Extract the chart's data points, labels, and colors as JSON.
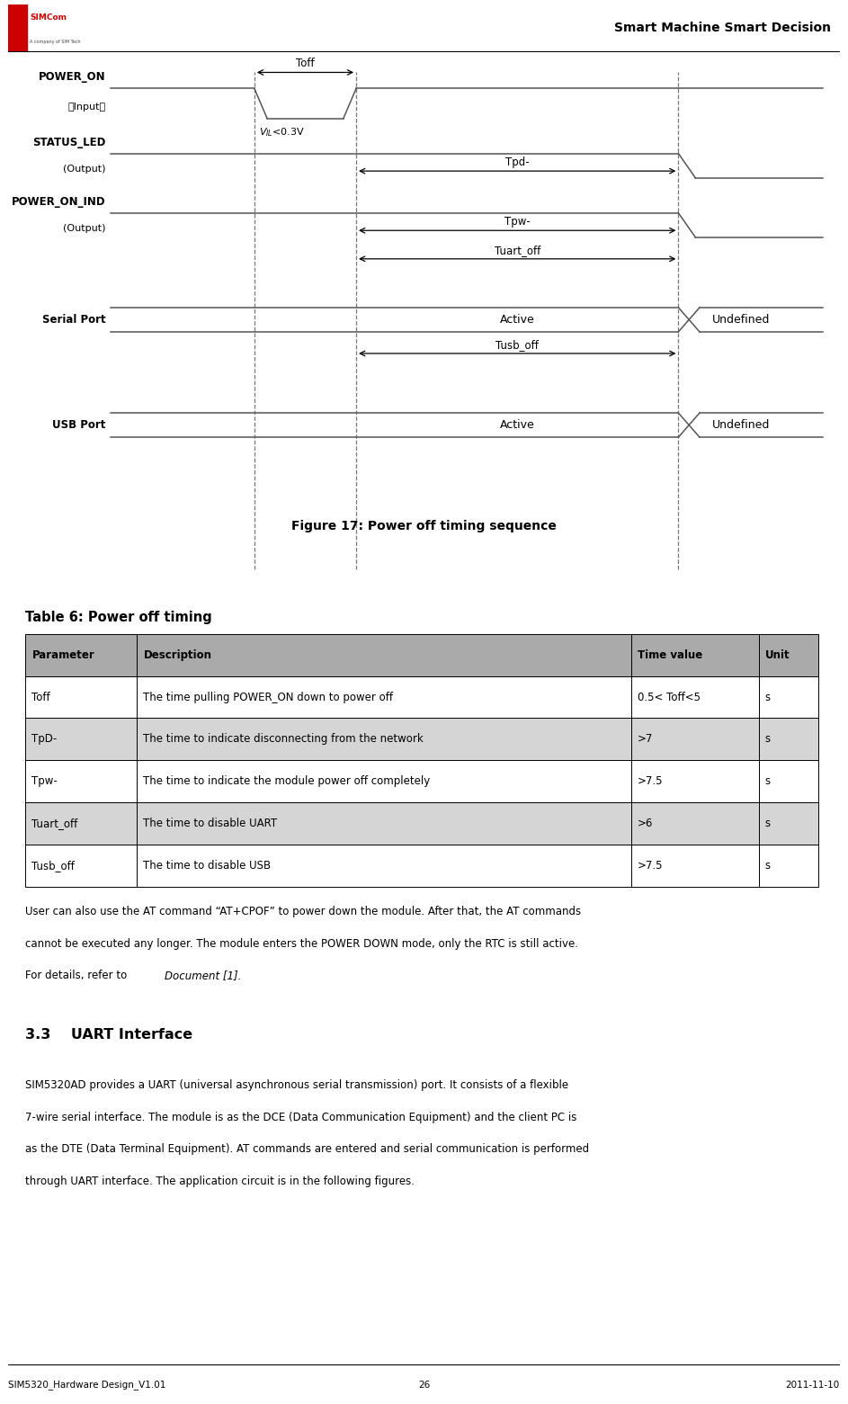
{
  "title_right": "Smart Machine Smart Decision",
  "fig_caption": "Figure 17: Power off timing sequence",
  "table_title": "Table 6: Power off timing",
  "table_headers": [
    "Parameter",
    "Description",
    "Time value",
    "Unit"
  ],
  "table_rows": [
    [
      "Toff",
      "The time pulling POWER_ON down to power off",
      "0.5< Toff<5",
      "s"
    ],
    [
      "TpD-",
      "The time to indicate disconnecting from the network",
      ">7",
      "s"
    ],
    [
      "Tpw-",
      "The time to indicate the module power off completely",
      ">7.5",
      "s"
    ],
    [
      "Tuart_off",
      "The time to disable UART",
      ">6",
      "s"
    ],
    [
      "Tusb_off",
      "The time to disable USB",
      ">7.5",
      "s"
    ]
  ],
  "body_lines": [
    "User can also use the AT command “AT+CPOF” to power down the module. After that, the AT commands",
    "cannot be executed any longer. The module enters the POWER DOWN mode, only the RTC is still active.",
    "For details, refer to _Document [1]_."
  ],
  "section_title": "3.3    UART Interface",
  "section_text_lines": [
    "SIM5320AD provides a UART (universal asynchronous serial transmission) port. It consists of a flexible",
    "7-wire serial interface. The module is as the DCE (Data Communication Equipment) and the client PC is",
    "as the DTE (Data Terminal Equipment). AT commands are entered and serial communication is performed",
    "through UART interface. The application circuit is in the following figures."
  ],
  "footer_left": "SIM5320_Hardware Design_V1.01",
  "footer_center": "26",
  "footer_right": "2011-11-10",
  "signal_color": "#555555",
  "dashed_color": "#777777",
  "bg_color": "#ffffff",
  "header_line_color": "#000000",
  "table_header_bg": "#aaaaaa",
  "table_row_even_bg": "#ffffff",
  "table_row_odd_bg": "#d8d8d8"
}
